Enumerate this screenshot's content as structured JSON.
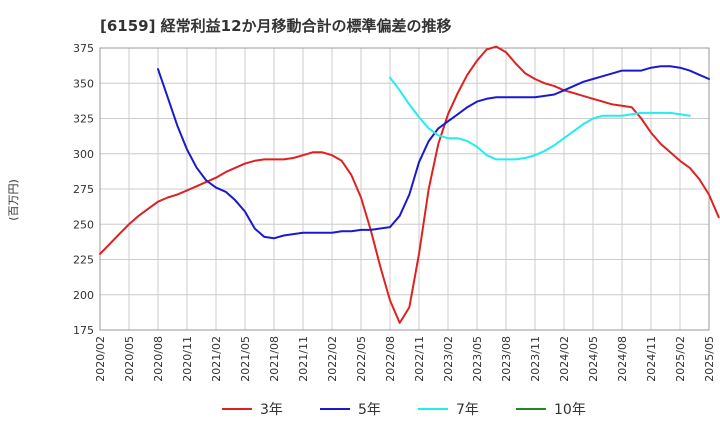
{
  "chart_data": {
    "type": "line",
    "title": "[6159]  経常利益12か月移動合計の標準偏差の推移",
    "ylabel": "(百万円)",
    "xlabel": "",
    "ylim": [
      175,
      375
    ],
    "yticks": [
      175,
      200,
      225,
      250,
      275,
      300,
      325,
      350,
      375
    ],
    "xticks": [
      "2020/02",
      "2020/05",
      "2020/08",
      "2020/11",
      "2021/02",
      "2021/05",
      "2021/08",
      "2021/11",
      "2022/02",
      "2022/05",
      "2022/08",
      "2022/11",
      "2023/02",
      "2023/05",
      "2023/08",
      "2023/11",
      "2024/02",
      "2024/05",
      "2024/08",
      "2024/11",
      "2025/02",
      "2025/05"
    ],
    "x_start": "2020/02",
    "grid": true,
    "legend_position": "bottom",
    "series": [
      {
        "name": "3年",
        "color": "#dd2222",
        "start_month_index": 0,
        "values": [
          229,
          236,
          243,
          250,
          256,
          261,
          266,
          269,
          271,
          274,
          277,
          280,
          283,
          287,
          290,
          293,
          295,
          296,
          296,
          296,
          297,
          299,
          301,
          301,
          299,
          295,
          285,
          269,
          246,
          220,
          196,
          180,
          191,
          229,
          275,
          307,
          328,
          343,
          356,
          366,
          374,
          376,
          372,
          364,
          357,
          353,
          350,
          348,
          345,
          343,
          341,
          339,
          337,
          335,
          334,
          333,
          325,
          315,
          307,
          301,
          295,
          290,
          282,
          271,
          255
        ]
      },
      {
        "name": "5年",
        "color": "#1a1acc",
        "start_month_index": 6,
        "values": [
          360,
          340,
          320,
          303,
          290,
          281,
          276,
          273,
          267,
          259,
          247,
          241,
          240,
          242,
          243,
          244,
          244,
          244,
          244,
          245,
          245,
          246,
          246,
          247,
          248,
          256,
          271,
          294,
          309,
          318,
          323,
          328,
          333,
          337,
          339,
          340,
          340,
          340,
          340,
          340,
          341,
          342,
          345,
          348,
          351,
          353,
          355,
          357,
          359,
          359,
          359,
          361,
          362,
          362,
          361,
          359,
          356,
          353
        ]
      },
      {
        "name": "7年",
        "color": "#22eeee",
        "start_month_index": 30,
        "values": [
          354,
          345,
          335,
          326,
          318,
          313,
          311,
          311,
          309,
          305,
          299,
          296,
          296,
          296,
          297,
          299,
          302,
          306,
          311,
          316,
          321,
          325,
          327,
          327,
          327,
          328,
          329,
          329,
          329,
          329,
          328,
          327
        ]
      },
      {
        "name": "10年",
        "color": "#228822",
        "start_month_index": 0,
        "values": []
      }
    ]
  }
}
